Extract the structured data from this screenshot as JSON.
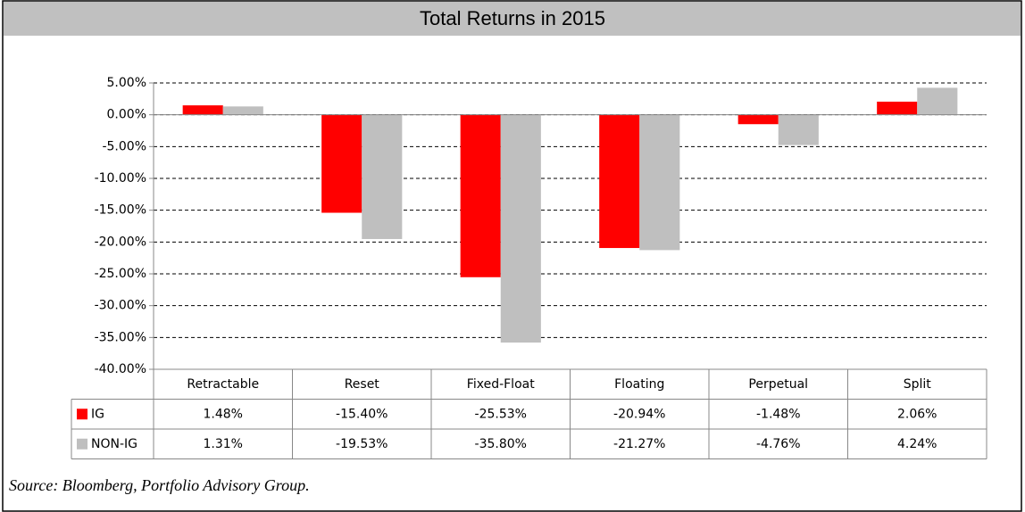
{
  "chart_data": {
    "type": "bar",
    "title": "Total Returns in 2015",
    "categories": [
      "Retractable",
      "Reset",
      "Fixed-Float",
      "Floating",
      "Perpetual",
      "Split"
    ],
    "series": [
      {
        "name": "IG",
        "color": "#ff0000",
        "values": [
          1.48,
          -15.4,
          -25.53,
          -20.94,
          -1.48,
          2.06
        ],
        "value_labels": [
          "1.48%",
          "-15.40%",
          "-25.53%",
          "-20.94%",
          "-1.48%",
          "2.06%"
        ]
      },
      {
        "name": "NON-IG",
        "color": "#bfbfbf",
        "values": [
          1.31,
          -19.53,
          -35.8,
          -21.27,
          -4.76,
          4.24
        ],
        "value_labels": [
          "1.31%",
          "-19.53%",
          "-35.80%",
          "-21.27%",
          "-4.76%",
          "4.24%"
        ]
      }
    ],
    "ylim": [
      -40,
      5
    ],
    "yticks": [
      {
        "value": 5,
        "label": "5.00%"
      },
      {
        "value": 0,
        "label": "0.00%"
      },
      {
        "value": -5,
        "label": "-5.00%"
      },
      {
        "value": -10,
        "label": "-10.00%"
      },
      {
        "value": -15,
        "label": "-15.00%"
      },
      {
        "value": -20,
        "label": "-20.00%"
      },
      {
        "value": -25,
        "label": "-25.00%"
      },
      {
        "value": -30,
        "label": "-30.00%"
      },
      {
        "value": -35,
        "label": "-35.00%"
      },
      {
        "value": -40,
        "label": "-40.00%"
      }
    ],
    "grid": true,
    "source": "Source: Bloomberg, Portfolio Advisory Group."
  }
}
